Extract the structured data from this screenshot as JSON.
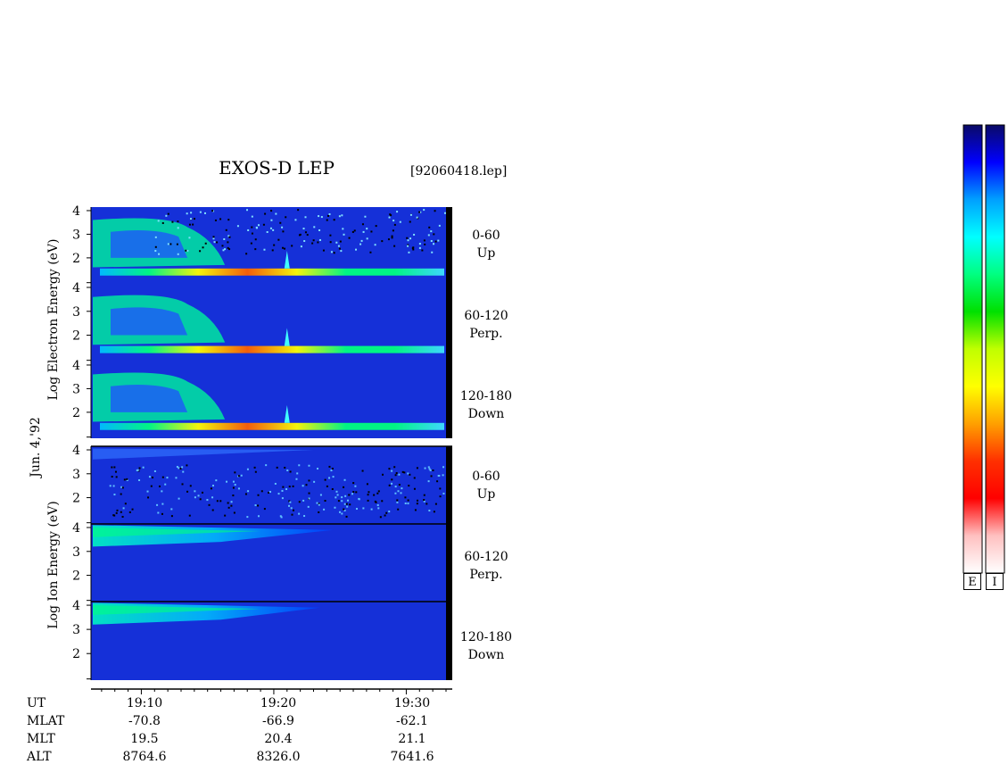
{
  "header": {
    "title": "EXOS-D LEP",
    "file_id": "[92060418.lep]"
  },
  "date_label": "Jun. 4,'92",
  "groups": [
    {
      "name": "electron",
      "ylabel": "Log Electron Energy (eV)"
    },
    {
      "name": "ion",
      "ylabel": "Log Ion Energy (eV)"
    }
  ],
  "panels": [
    {
      "angle": "0-60",
      "dir": "Up"
    },
    {
      "angle": "60-120",
      "dir": "Perp."
    },
    {
      "angle": "120-180",
      "dir": "Down"
    },
    {
      "angle": "0-60",
      "dir": "Up"
    },
    {
      "angle": "60-120",
      "dir": "Perp."
    },
    {
      "angle": "120-180",
      "dir": "Down"
    }
  ],
  "chart_data": {
    "type": "heatmap",
    "title": "EXOS-D LEP",
    "ylim": [
      1,
      4
    ],
    "yticks": [
      "4",
      "3",
      "2"
    ],
    "x_times": [
      "19:10",
      "19:20",
      "19:30"
    ],
    "ephemeris": {
      "labels": [
        "UT",
        "MLAT",
        "MLT",
        "ALT"
      ],
      "UT": [
        "19:10",
        "19:20",
        "19:30"
      ],
      "MLAT": [
        "-70.8",
        "-66.9",
        "-62.1"
      ],
      "MLT": [
        "19.5",
        "20.4",
        "21.1"
      ],
      "ALT": [
        "8764.6",
        "8326.0",
        "7641.6"
      ]
    },
    "colormap": [
      "#0a0a66",
      "#0000ff",
      "#00a0ff",
      "#00ffff",
      "#00ff80",
      "#00e000",
      "#c0ff00",
      "#ffff00",
      "#ffa000",
      "#ff3000",
      "#ff0000",
      "#ffc0c0",
      "#ffffff"
    ],
    "colorbar_labels": [
      "E",
      "I"
    ]
  }
}
